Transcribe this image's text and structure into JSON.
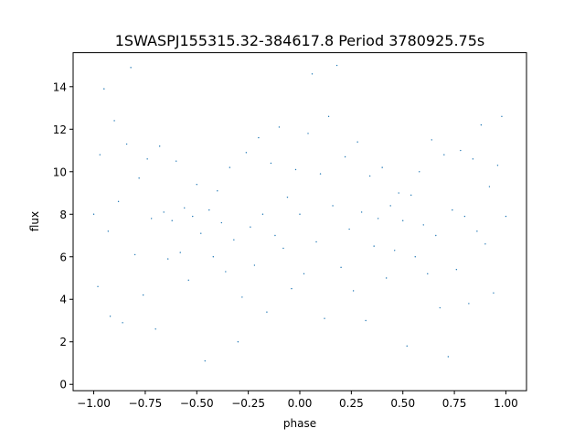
{
  "chart_data": {
    "type": "scatter",
    "title": "1SWASPJ155315.32-384617.8 Period 3780925.75s",
    "xlabel": "phase",
    "ylabel": "flux",
    "xlim": [
      -1.1,
      1.1
    ],
    "ylim": [
      -0.3,
      15.6
    ],
    "x_ticks": [
      -1.0,
      -0.75,
      -0.5,
      -0.25,
      0.0,
      0.25,
      0.5,
      0.75,
      1.0
    ],
    "x_tick_labels": [
      "−1.00",
      "−0.75",
      "−0.50",
      "−0.25",
      "0.00",
      "0.25",
      "0.50",
      "0.75",
      "1.00"
    ],
    "y_ticks": [
      0,
      2,
      4,
      6,
      8,
      10,
      12,
      14
    ],
    "y_tick_labels": [
      "0",
      "2",
      "4",
      "6",
      "8",
      "10",
      "12",
      "14"
    ],
    "grid": false,
    "marker_color": "#1f77b4",
    "phase_range": [
      -1.0,
      1.0
    ],
    "series": [
      {
        "points": [
          [
            -1.0,
            8.0
          ],
          [
            -0.98,
            4.6
          ],
          [
            -0.97,
            10.8
          ],
          [
            -0.95,
            13.9
          ],
          [
            -0.93,
            7.2
          ],
          [
            -0.92,
            3.2
          ],
          [
            -0.9,
            12.4
          ],
          [
            -0.88,
            8.6
          ],
          [
            -0.86,
            2.9
          ],
          [
            -0.84,
            11.3
          ],
          [
            -0.82,
            14.9
          ],
          [
            -0.8,
            6.1
          ],
          [
            -0.78,
            9.7
          ],
          [
            -0.76,
            4.2
          ],
          [
            -0.74,
            10.6
          ],
          [
            -0.72,
            7.8
          ],
          [
            -0.7,
            2.6
          ],
          [
            -0.68,
            11.2
          ],
          [
            -0.66,
            8.1
          ],
          [
            -0.64,
            5.9
          ],
          [
            -0.62,
            7.7
          ],
          [
            -0.6,
            10.5
          ],
          [
            -0.58,
            6.2
          ],
          [
            -0.56,
            8.3
          ],
          [
            -0.54,
            4.9
          ],
          [
            -0.52,
            7.9
          ],
          [
            -0.5,
            9.4
          ],
          [
            -0.48,
            7.1
          ],
          [
            -0.46,
            1.1
          ],
          [
            -0.44,
            8.2
          ],
          [
            -0.42,
            6.0
          ],
          [
            -0.4,
            9.1
          ],
          [
            -0.38,
            7.6
          ],
          [
            -0.36,
            5.3
          ],
          [
            -0.34,
            10.2
          ],
          [
            -0.32,
            6.8
          ],
          [
            -0.3,
            2.0
          ],
          [
            -0.28,
            4.1
          ],
          [
            -0.26,
            10.9
          ],
          [
            -0.24,
            7.4
          ],
          [
            -0.22,
            5.6
          ],
          [
            -0.2,
            11.6
          ],
          [
            -0.18,
            8.0
          ],
          [
            -0.16,
            3.4
          ],
          [
            -0.14,
            10.4
          ],
          [
            -0.12,
            7.0
          ],
          [
            -0.1,
            12.1
          ],
          [
            -0.08,
            6.4
          ],
          [
            -0.06,
            8.8
          ],
          [
            -0.04,
            4.5
          ],
          [
            -0.02,
            10.1
          ],
          [
            0.0,
            8.0
          ],
          [
            0.02,
            5.2
          ],
          [
            0.04,
            11.8
          ],
          [
            0.06,
            14.6
          ],
          [
            0.08,
            6.7
          ],
          [
            0.1,
            9.9
          ],
          [
            0.12,
            3.1
          ],
          [
            0.14,
            12.6
          ],
          [
            0.16,
            8.4
          ],
          [
            0.18,
            15.0
          ],
          [
            0.2,
            5.5
          ],
          [
            0.22,
            10.7
          ],
          [
            0.24,
            7.3
          ],
          [
            0.26,
            4.4
          ],
          [
            0.28,
            11.4
          ],
          [
            0.3,
            8.1
          ],
          [
            0.32,
            3.0
          ],
          [
            0.34,
            9.8
          ],
          [
            0.36,
            6.5
          ],
          [
            0.38,
            7.8
          ],
          [
            0.4,
            10.2
          ],
          [
            0.42,
            5.0
          ],
          [
            0.44,
            8.4
          ],
          [
            0.46,
            6.3
          ],
          [
            0.48,
            9.0
          ],
          [
            0.5,
            7.7
          ],
          [
            0.52,
            1.8
          ],
          [
            0.54,
            8.9
          ],
          [
            0.56,
            6.0
          ],
          [
            0.58,
            10.0
          ],
          [
            0.6,
            7.5
          ],
          [
            0.62,
            5.2
          ],
          [
            0.64,
            11.5
          ],
          [
            0.66,
            7.0
          ],
          [
            0.68,
            3.6
          ],
          [
            0.7,
            10.8
          ],
          [
            0.72,
            1.3
          ],
          [
            0.74,
            8.2
          ],
          [
            0.76,
            5.4
          ],
          [
            0.78,
            11.0
          ],
          [
            0.8,
            7.9
          ],
          [
            0.82,
            3.8
          ],
          [
            0.84,
            10.6
          ],
          [
            0.86,
            7.2
          ],
          [
            0.88,
            12.2
          ],
          [
            0.9,
            6.6
          ],
          [
            0.92,
            9.3
          ],
          [
            0.94,
            4.3
          ],
          [
            0.96,
            10.3
          ],
          [
            0.98,
            12.6
          ],
          [
            1.0,
            7.9
          ]
        ]
      }
    ]
  }
}
